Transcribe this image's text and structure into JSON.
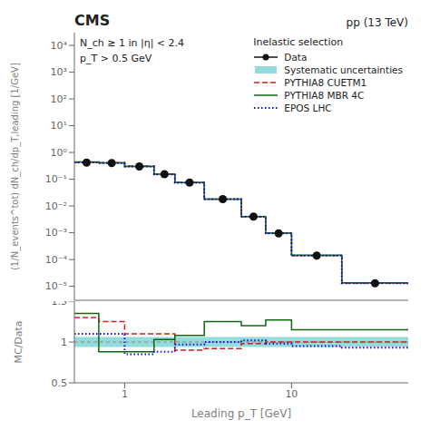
{
  "chart_data": [
    {
      "type": "line",
      "title": "CMS",
      "subtitle": "pp (13 TeV)",
      "y_label": "(1/N_events^tot) dN_ch/dp_T,leading [1/GeV]",
      "annotations": [
        "N_ch ≥ 1 in |η| < 2.4\np_T > 0.5 GeV",
        "Inelastic selection"
      ],
      "bins": [
        0.5,
        0.7,
        1.0,
        1.5,
        2.0,
        3.0,
        5.0,
        7.0,
        10.0,
        20.0,
        50.0
      ],
      "series": [
        {
          "name": "Data",
          "type": "scatter",
          "marker": "circle",
          "color": "#111111",
          "x": [
            0.591608,
            0.83666,
            1.224745,
            1.732051,
            2.44949,
            3.872983,
            5.91608,
            8.3666,
            14.142136,
            31.622777
          ],
          "values": [
            0.42,
            0.4,
            0.3,
            0.155,
            0.075,
            0.018,
            0.004,
            0.00095,
            0.00014,
            1.3e-05
          ]
        },
        {
          "name": "Systematic uncertainties",
          "type": "band",
          "color": "#66cccc",
          "low": [
            0.399,
            0.38,
            0.285,
            0.14725,
            0.07125,
            0.0171,
            0.0038,
            0.0009025,
            0.000133,
            1.235e-05
          ],
          "high": [
            0.441,
            0.42,
            0.315,
            0.16275,
            0.07875,
            0.0189,
            0.0042,
            0.0009975,
            0.000147,
            1.365e-05
          ]
        },
        {
          "name": "PYTHIA8 CUETM1",
          "type": "step",
          "line_style": "dashed",
          "color": "#cc2222",
          "values": [
            0.43,
            0.42,
            0.31,
            0.155,
            0.076,
            0.018,
            0.004,
            0.00096,
            0.00014,
            1.3e-05
          ]
        },
        {
          "name": "PYTHIA8 MBR 4C",
          "type": "step",
          "line_style": "solid",
          "color": "#116611",
          "values": [
            0.44,
            0.41,
            0.3,
            0.155,
            0.075,
            0.018,
            0.004,
            0.00098,
            0.000145,
            1.35e-05
          ]
        },
        {
          "name": "EPOS LHC",
          "type": "step",
          "line_style": "dotted",
          "color": "#1111cc",
          "values": [
            0.43,
            0.4,
            0.3,
            0.153,
            0.074,
            0.018,
            0.004,
            0.00095,
            0.00014,
            1.3e-05
          ]
        }
      ],
      "log": true,
      "xlim": [
        0.5,
        50.0
      ],
      "xticks": [
        1,
        10
      ],
      "ylim": [
        3e-06,
        30000.0
      ],
      "yticks": [
        {
          "value": 1e-05,
          "label": "10⁻⁵"
        },
        {
          "value": 0.0001,
          "label": "10⁻⁴"
        },
        {
          "value": 0.001,
          "label": "10⁻³"
        },
        {
          "value": 0.01,
          "label": "10⁻²"
        },
        {
          "value": 0.1,
          "label": "10⁻¹"
        },
        {
          "value": 1,
          "label": "10⁰"
        },
        {
          "value": 10,
          "label": "10¹"
        },
        {
          "value": 100,
          "label": "10²"
        },
        {
          "value": 1000,
          "label": "10³"
        },
        {
          "value": 10000,
          "label": "10⁴"
        }
      ],
      "legend": "upper right",
      "grid": false,
      "tick_labels": "y"
    },
    {
      "type": "line",
      "x_label": "Leading p_T [GeV]",
      "y_label": "MC/Data",
      "bins": [
        0.5,
        0.7,
        1.0,
        1.5,
        2.0,
        3.0,
        5.0,
        7.0,
        10.0,
        20.0,
        50.0
      ],
      "reference_y": 1.0,
      "series": [
        {
          "name": "Systematic uncertainties",
          "type": "band",
          "color": "#66cccc",
          "low": [
            0.94,
            0.94,
            0.94,
            0.94,
            0.94,
            0.94,
            0.94,
            0.94,
            0.94,
            0.94
          ],
          "high": [
            1.06,
            1.06,
            1.06,
            1.06,
            1.06,
            1.06,
            1.06,
            1.06,
            1.06,
            1.06
          ]
        },
        {
          "name": "PYTHIA8 CUETM1",
          "type": "step",
          "line_style": "dashed",
          "color": "#cc2222",
          "values": [
            1.3,
            1.25,
            1.1,
            1.1,
            0.9,
            0.92,
            0.98,
            1.0,
            1.0,
            1.0
          ]
        },
        {
          "name": "PYTHIA8 MBR 4C",
          "type": "step",
          "line_style": "solid",
          "color": "#116611",
          "values": [
            1.35,
            0.88,
            0.88,
            1.03,
            1.08,
            1.25,
            1.2,
            1.27,
            1.15,
            1.15
          ]
        },
        {
          "name": "EPOS LHC",
          "type": "step",
          "line_style": "dotted",
          "color": "#1111cc",
          "values": [
            1.1,
            1.1,
            0.85,
            0.88,
            0.97,
            1.0,
            1.02,
            0.98,
            0.95,
            0.93
          ]
        }
      ],
      "log": "x",
      "xlim": [
        0.5,
        50.0
      ],
      "xticks": [
        1,
        10
      ],
      "ylim": [
        0.5,
        1.5
      ],
      "yticks": [
        0.5,
        1,
        1.5
      ],
      "grid": false
    }
  ]
}
